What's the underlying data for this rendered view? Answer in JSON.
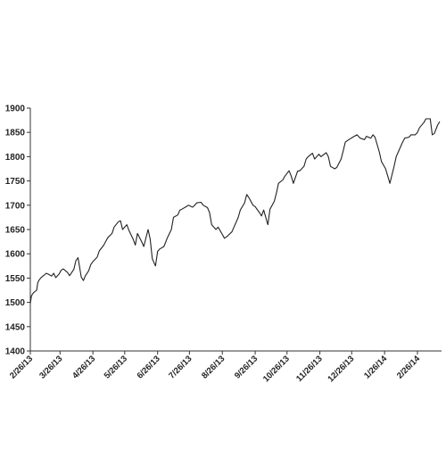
{
  "chart_data": {
    "type": "line",
    "title": "",
    "xlabel": "",
    "ylabel": "",
    "ylim": [
      1400,
      1900
    ],
    "y_ticks": [
      1400,
      1450,
      1500,
      1550,
      1600,
      1650,
      1700,
      1750,
      1800,
      1850,
      1900
    ],
    "x_tick_labels": [
      "2/26/13",
      "3/26/13",
      "4/26/13",
      "5/26/13",
      "6/26/13",
      "7/26/13",
      "8/26/13",
      "9/26/13",
      "10/26/13",
      "11/26/13",
      "12/26/13",
      "1/26/14",
      "2/26/14"
    ],
    "grid": false,
    "legend": "none",
    "series": [
      {
        "line_color": "#222222",
        "x": [
          "2/26/13",
          "2/27/13",
          "2/28/13",
          "3/1/13",
          "3/4/13",
          "3/5/13",
          "3/6/13",
          "3/8/13",
          "3/11/13",
          "3/13/13",
          "3/15/13",
          "3/18/13",
          "3/20/13",
          "3/22/13",
          "3/25/13",
          "3/27/13",
          "3/29/13",
          "4/2/13",
          "4/4/13",
          "4/8/13",
          "4/10/13",
          "4/12/13",
          "4/15/13",
          "4/17/13",
          "4/19/13",
          "4/22/13",
          "4/24/13",
          "4/26/13",
          "4/30/13",
          "5/2/13",
          "5/6/13",
          "5/8/13",
          "5/10/13",
          "5/14/13",
          "5/16/13",
          "5/20/13",
          "5/22/13",
          "5/24/13",
          "5/28/13",
          "5/30/13",
          "6/3/13",
          "6/5/13",
          "6/7/13",
          "6/11/13",
          "6/13/13",
          "6/17/13",
          "6/19/13",
          "6/21/13",
          "6/24/13",
          "6/26/13",
          "6/28/13",
          "7/2/13",
          "7/5/13",
          "7/9/13",
          "7/11/13",
          "7/15/13",
          "7/17/13",
          "7/19/13",
          "7/23/13",
          "7/25/13",
          "7/29/13",
          "7/31/13",
          "8/2/13",
          "8/6/13",
          "8/8/13",
          "8/12/13",
          "8/14/13",
          "8/16/13",
          "8/20/13",
          "8/22/13",
          "8/26/13",
          "8/28/13",
          "8/30/13",
          "9/4/13",
          "9/6/13",
          "9/10/13",
          "9/12/13",
          "9/16/13",
          "9/18/13",
          "9/20/13",
          "9/24/13",
          "9/26/13",
          "9/30/13",
          "10/2/13",
          "10/4/13",
          "10/8/13",
          "10/10/13",
          "10/14/13",
          "10/16/13",
          "10/18/13",
          "10/22/13",
          "10/24/13",
          "10/28/13",
          "10/30/13",
          "11/1/13",
          "11/5/13",
          "11/7/13",
          "11/11/13",
          "11/13/13",
          "11/15/13",
          "11/19/13",
          "11/21/13",
          "11/25/13",
          "11/27/13",
          "12/2/13",
          "12/4/13",
          "12/6/13",
          "12/10/13",
          "12/12/13",
          "12/16/13",
          "12/18/13",
          "12/20/13",
          "12/24/13",
          "12/27/13",
          "12/31/13",
          "1/3/14",
          "1/7/14",
          "1/9/14",
          "1/13/14",
          "1/15/14",
          "1/17/14",
          "1/21/14",
          "1/23/14",
          "1/27/14",
          "1/29/14",
          "1/31/14",
          "2/4/14",
          "2/6/14",
          "2/10/14",
          "2/12/14",
          "2/14/14",
          "2/18/14",
          "2/20/14",
          "2/24/14",
          "2/26/14",
          "2/28/14",
          "3/4/14",
          "3/6/14",
          "3/10/14",
          "3/12/14",
          "3/14/14",
          "3/17/14",
          "3/19/14"
        ],
        "values": [
          1498,
          1513,
          1517,
          1520,
          1525,
          1540,
          1545,
          1551,
          1556,
          1560,
          1558,
          1554,
          1560,
          1551,
          1558,
          1566,
          1569,
          1562,
          1555,
          1568,
          1586,
          1592,
          1552,
          1545,
          1555,
          1565,
          1578,
          1584,
          1593,
          1606,
          1617,
          1625,
          1633,
          1642,
          1655,
          1666,
          1668,
          1650,
          1660,
          1648,
          1630,
          1618,
          1642,
          1625,
          1615,
          1650,
          1630,
          1590,
          1575,
          1605,
          1610,
          1615,
          1632,
          1650,
          1675,
          1680,
          1690,
          1692,
          1697,
          1700,
          1696,
          1700,
          1705,
          1706,
          1700,
          1695,
          1685,
          1660,
          1650,
          1655,
          1640,
          1632,
          1635,
          1645,
          1655,
          1675,
          1690,
          1705,
          1722,
          1716,
          1700,
          1697,
          1685,
          1678,
          1690,
          1660,
          1692,
          1708,
          1725,
          1745,
          1752,
          1760,
          1771,
          1760,
          1745,
          1770,
          1771,
          1780,
          1795,
          1800,
          1807,
          1795,
          1805,
          1800,
          1808,
          1800,
          1780,
          1775,
          1778,
          1795,
          1812,
          1830,
          1836,
          1840,
          1845,
          1838,
          1835,
          1842,
          1838,
          1845,
          1840,
          1810,
          1790,
          1775,
          1760,
          1745,
          1780,
          1800,
          1820,
          1830,
          1838,
          1840,
          1845,
          1845,
          1850,
          1860,
          1870,
          1878,
          1878,
          1845,
          1848,
          1865,
          1872
        ]
      }
    ]
  }
}
